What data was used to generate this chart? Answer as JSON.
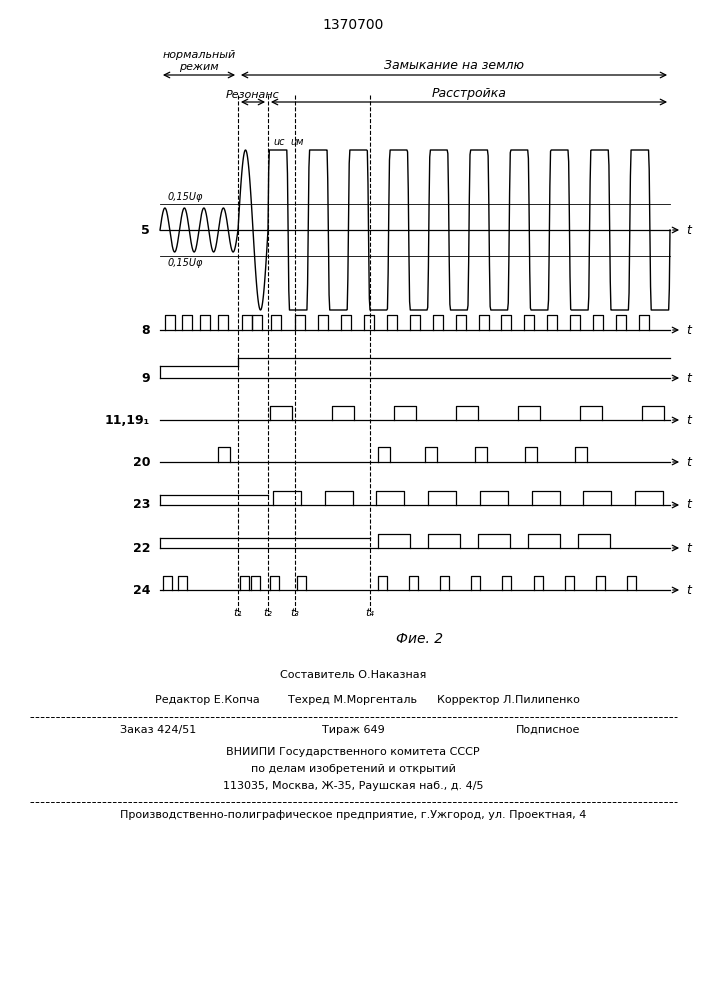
{
  "title": "1370700",
  "fig_caption": "Фие. 2",
  "label_normal": "нормальный\nрежим",
  "label_zamyk": "Замыкание на землю",
  "label_rezonans": "Резонанс",
  "label_rasstrojka": "Расстройка",
  "label_uc": "uс",
  "label_um": "uм",
  "label_015uf_top": "0,15Uφ",
  "label_015uf_bot": "0,15Uφ",
  "bg_color": "#ffffff",
  "line_color": "#000000",
  "footer_line1_center": "Составитель О.Наказная",
  "footer_line2_left": "Редактор Е.Копча",
  "footer_line2_center": "Техред М.Моргенталь",
  "footer_line2_right": "Корректор Л.Пилипенко",
  "footer_line3_left": "Заказ 424/51",
  "footer_line3_center": "Тираж 649",
  "footer_line3_right": "Подписное",
  "footer_line4": "ВНИИПИ Государственного комитета СССР",
  "footer_line5": "по делам изобретений и открытий",
  "footer_line6": "113035, Москва, Ж-35, Раушская наб., д. 4/5",
  "footer_line7": "Производственно-полиграфическое предприятие, г.Ужгород, ул. Проектная, 4",
  "t1_label": "t₁",
  "t2_label": "t₂",
  "t3_label": "t₃",
  "t4_label": "t₄",
  "ch5_label": "5",
  "ch8_label": "8",
  "ch9_label": "9",
  "ch11_label": "11,19₁",
  "ch20_label": "20",
  "ch23_label": "23",
  "ch22_label": "22",
  "ch24_label": "24"
}
